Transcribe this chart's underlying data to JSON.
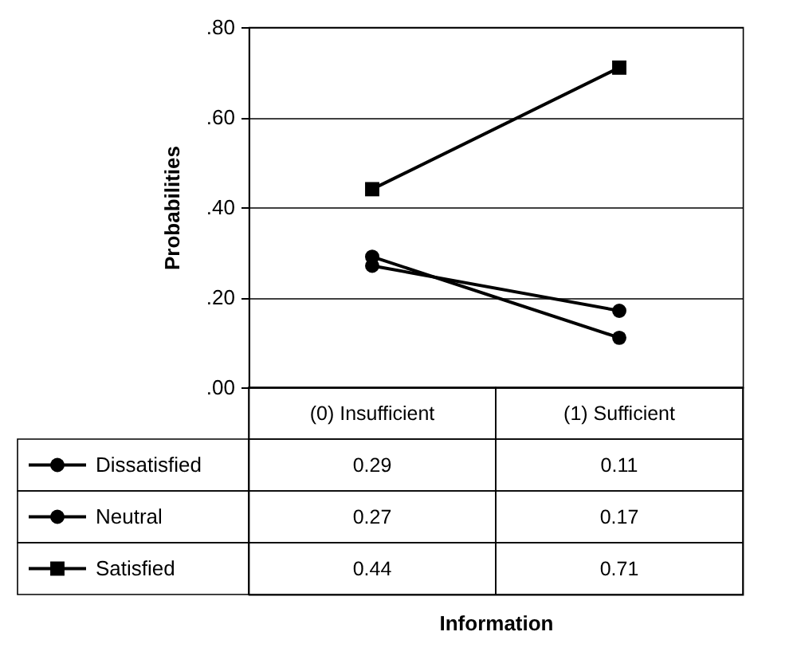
{
  "chart_data": {
    "type": "line",
    "annotations": [
      "Information"
    ],
    "ylabel": "Probabilities",
    "categories": [
      "(0) Insufficient",
      "(1) Sufficient"
    ],
    "series": [
      {
        "name": "Dissatisfied",
        "color": "#000000",
        "marker": "circle",
        "values": [
          0.29,
          0.11
        ]
      },
      {
        "name": "Neutral",
        "color": "#000000",
        "marker": "circle",
        "values": [
          0.27,
          0.17
        ]
      },
      {
        "name": "Satisfied",
        "color": "#000000",
        "marker": "square",
        "values": [
          0.44,
          0.71
        ]
      }
    ],
    "ylim": [
      0,
      0.8
    ],
    "yticks": [
      {
        "value": 0,
        "label": ".00"
      },
      {
        "value": 0.2,
        "label": ".20"
      },
      {
        "value": 0.4,
        "label": ".40"
      },
      {
        "value": 0.6,
        "label": ".60"
      },
      {
        "value": 0.8,
        "label": ".80"
      }
    ],
    "grid": "y",
    "legend": "bottom",
    "data_labels": true
  }
}
